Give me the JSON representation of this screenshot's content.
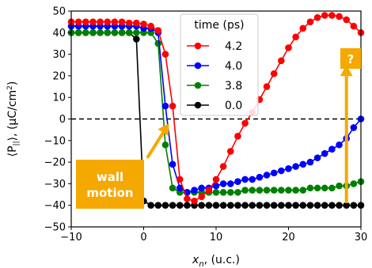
{
  "chart_data": {
    "type": "line",
    "xlabel": "x_n, (u.c.)",
    "xlabel_main": "x",
    "xlabel_sub": "n",
    "xlabel_rest": ", (u.c.)",
    "ylabel": "⟨P_∥⟩, (µC/cm²)",
    "ylabel_main": "⟨P",
    "ylabel_sub": "||",
    "ylabel_mid": "⟩, (µC/cm",
    "ylabel_sup": "2",
    "ylabel_end": ")",
    "xlim": [
      -10,
      30
    ],
    "ylim": [
      -50,
      50
    ],
    "xticks": [
      "−10",
      "0",
      "10",
      "20",
      "30"
    ],
    "xtick_values": [
      -10,
      0,
      10,
      20,
      30
    ],
    "yticks": [
      "−50",
      "−40",
      "−30",
      "−20",
      "−10",
      "0",
      "10",
      "20",
      "30",
      "40",
      "50"
    ],
    "ytick_values": [
      -50,
      -40,
      -30,
      -20,
      -10,
      0,
      10,
      20,
      30,
      40,
      50
    ],
    "grid": false,
    "zero_line": "dashed",
    "legend": {
      "title": "time (ps)",
      "placement": "top-center"
    },
    "series": [
      {
        "name": "4.2",
        "color": "#ff0000",
        "x": [
          -10,
          -9,
          -8,
          -7,
          -6,
          -5,
          -4,
          -3,
          -2,
          -1,
          0,
          1,
          2,
          3,
          4,
          5,
          6,
          7,
          8,
          9,
          10,
          11,
          12,
          13,
          14,
          15,
          16,
          17,
          18,
          19,
          20,
          21,
          22,
          23,
          24,
          25,
          26,
          27,
          28,
          29,
          30
        ],
        "y": [
          45,
          45,
          45,
          45,
          45,
          45,
          45,
          45,
          44.5,
          44.5,
          44,
          43,
          41,
          30,
          6,
          -28,
          -37,
          -38,
          -36,
          -33,
          -28,
          -22,
          -15,
          -8,
          -2,
          3,
          9,
          15,
          21,
          27,
          33,
          38,
          42,
          45,
          47,
          48,
          48,
          47.5,
          46,
          43,
          40
        ]
      },
      {
        "name": "4.0",
        "color": "#0000ff",
        "x": [
          -10,
          -9,
          -8,
          -7,
          -6,
          -5,
          -4,
          -3,
          -2,
          -1,
          0,
          1,
          2,
          3,
          4,
          5,
          6,
          7,
          8,
          9,
          10,
          11,
          12,
          13,
          14,
          15,
          16,
          17,
          18,
          19,
          20,
          21,
          22,
          23,
          24,
          25,
          26,
          27,
          28,
          29,
          30
        ],
        "y": [
          43,
          43,
          43,
          43,
          43,
          43,
          43,
          43,
          43,
          43,
          42,
          42,
          40,
          6,
          -21,
          -32,
          -34,
          -33,
          -32,
          -32,
          -31,
          -30,
          -30,
          -29,
          -28,
          -28,
          -27,
          -26,
          -25,
          -24,
          -23,
          -22,
          -21,
          -20,
          -18,
          -16,
          -14,
          -12,
          -9,
          -4,
          0
        ]
      },
      {
        "name": "3.8",
        "color": "#008000",
        "x": [
          -10,
          -9,
          -8,
          -7,
          -6,
          -5,
          -4,
          -3,
          -2,
          -1,
          0,
          1,
          2,
          3,
          4,
          5,
          6,
          7,
          8,
          9,
          10,
          11,
          12,
          13,
          14,
          15,
          16,
          17,
          18,
          19,
          20,
          21,
          22,
          23,
          24,
          25,
          26,
          27,
          28,
          29,
          30
        ],
        "y": [
          40,
          40,
          40,
          40,
          40,
          40,
          40,
          40,
          40,
          40,
          40,
          40,
          35,
          -12,
          -32,
          -34,
          -34,
          -34,
          -34,
          -34,
          -34,
          -34,
          -34,
          -34,
          -33,
          -33,
          -33,
          -33,
          -33,
          -33,
          -33,
          -33,
          -33,
          -32,
          -32,
          -32,
          -32,
          -31,
          -31,
          -30,
          -29
        ]
      },
      {
        "name": "0.0",
        "color": "#000000",
        "x": [
          -10,
          -9,
          -8,
          -7,
          -6,
          -5,
          -4,
          -3,
          -2,
          -1,
          0,
          1,
          2,
          3,
          4,
          5,
          6,
          7,
          8,
          9,
          10,
          11,
          12,
          13,
          14,
          15,
          16,
          17,
          18,
          19,
          20,
          21,
          22,
          23,
          24,
          25,
          26,
          27,
          28,
          29,
          30
        ],
        "y": [
          40,
          40,
          40,
          40,
          40,
          40,
          40,
          40,
          40,
          37,
          -38,
          -40,
          -40,
          -40,
          -40,
          -40,
          -40,
          -40,
          -40,
          -40,
          -40,
          -40,
          -40,
          -40,
          -40,
          -40,
          -40,
          -40,
          -40,
          -40,
          -40,
          -40,
          -40,
          -40,
          -40,
          -40,
          -40,
          -40,
          -40,
          -40,
          -40
        ]
      }
    ],
    "annotations": [
      {
        "text": [
          "wall",
          "motion"
        ],
        "box_color": "#f5a800",
        "arrow_color": "#f5a800",
        "arrow_from": [
          0.5,
          -18
        ],
        "arrow_to": [
          3.5,
          -2
        ]
      },
      {
        "text": [
          "?"
        ],
        "box_color": "#f5a800",
        "arrow_color": "#f5a800",
        "arrow_from": [
          28,
          -39
        ],
        "arrow_to": [
          28,
          25
        ]
      }
    ]
  }
}
